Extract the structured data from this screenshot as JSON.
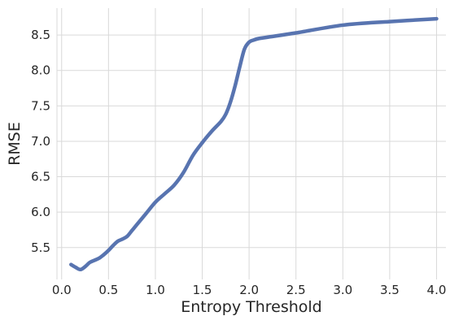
{
  "chart_data": {
    "type": "line",
    "title": "",
    "xlabel": "Entropy Threshold",
    "ylabel": "RMSE",
    "xlim": [
      -0.05,
      4.1
    ],
    "ylim": [
      5.05,
      8.88
    ],
    "grid": true,
    "xticks": [
      0.0,
      0.5,
      1.0,
      1.5,
      2.0,
      2.5,
      3.0,
      3.5,
      4.0
    ],
    "xtick_labels": [
      "0.0",
      "0.5",
      "1.0",
      "1.5",
      "2.0",
      "2.5",
      "3.0",
      "3.5",
      "4.0"
    ],
    "yticks": [
      5.5,
      6.0,
      6.5,
      7.0,
      7.5,
      8.0,
      8.5
    ],
    "ytick_labels": [
      "5.5",
      "6.0",
      "6.5",
      "7.0",
      "7.5",
      "8.0",
      "8.5"
    ],
    "series": [
      {
        "name": "",
        "color": "#5874b0",
        "x": [
          0.1,
          0.15,
          0.2,
          0.25,
          0.3,
          0.35,
          0.4,
          0.45,
          0.5,
          0.55,
          0.6,
          0.65,
          0.7,
          0.75,
          0.8,
          0.9,
          1.0,
          1.1,
          1.2,
          1.3,
          1.4,
          1.5,
          1.6,
          1.7,
          1.75,
          1.8,
          1.85,
          1.9,
          1.95,
          2.0,
          2.05,
          2.1,
          2.2,
          2.5,
          3.0,
          3.5,
          4.0
        ],
        "y": [
          5.26,
          5.22,
          5.19,
          5.23,
          5.29,
          5.32,
          5.35,
          5.4,
          5.46,
          5.53,
          5.59,
          5.62,
          5.66,
          5.74,
          5.82,
          5.98,
          6.14,
          6.26,
          6.38,
          6.56,
          6.8,
          6.98,
          7.14,
          7.28,
          7.38,
          7.55,
          7.78,
          8.05,
          8.3,
          8.4,
          8.43,
          8.45,
          8.47,
          8.53,
          8.64,
          8.69,
          8.73
        ]
      }
    ]
  }
}
